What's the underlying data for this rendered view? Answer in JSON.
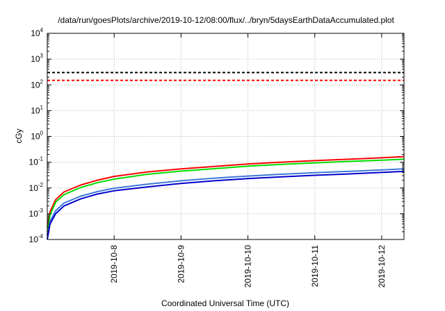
{
  "chart_data": {
    "type": "line",
    "title": "/data/run/goesPlots/archive/2019-10-12/08:00/flux/../bryn/5daysEarthDataAccumulated.plot",
    "xlabel": "Coordinated Universal Time (UTC)",
    "ylabel": "cGy",
    "y_scale": "log",
    "ylim": [
      0.0001,
      10000
    ],
    "y_ticks": [
      {
        "base": "10",
        "exp": "-4",
        "value": 0.0001
      },
      {
        "base": "10",
        "exp": "-3",
        "value": 0.001
      },
      {
        "base": "10",
        "exp": "-2",
        "value": 0.01
      },
      {
        "base": "10",
        "exp": "-1",
        "value": 0.1
      },
      {
        "base": "10",
        "exp": "0",
        "value": 1
      },
      {
        "base": "10",
        "exp": "1",
        "value": 10
      },
      {
        "base": "10",
        "exp": "2",
        "value": 100
      },
      {
        "base": "10",
        "exp": "3",
        "value": 1000
      },
      {
        "base": "10",
        "exp": "4",
        "value": 10000
      }
    ],
    "xlim": [
      "2019-10-07 00:00",
      "2019-10-12 08:00"
    ],
    "x_ticks": [
      "2019-10-8",
      "2019-10-9",
      "2019-10-10",
      "2019-10-11",
      "2019-10-12"
    ],
    "x_tick_dates": [
      "2019-10-08 00:00",
      "2019-10-09 00:00",
      "2019-10-10 00:00",
      "2019-10-11 00:00",
      "2019-10-12 00:00"
    ],
    "grid": true,
    "legend": "none",
    "series": [
      {
        "color": "#ff0000",
        "dashed": false,
        "x": [
          "2019-10-07 00:00",
          "2019-10-07 01:00",
          "2019-10-07 03:00",
          "2019-10-07 06:00",
          "2019-10-07 12:00",
          "2019-10-07 18:00",
          "2019-10-08 00:00",
          "2019-10-08 12:00",
          "2019-10-09 00:00",
          "2019-10-09 12:00",
          "2019-10-10 00:00",
          "2019-10-10 12:00",
          "2019-10-11 00:00",
          "2019-10-11 12:00",
          "2019-10-12 00:00",
          "2019-10-12 08:00"
        ],
        "y": [
          0.0003,
          0.0012,
          0.0035,
          0.007,
          0.013,
          0.02,
          0.028,
          0.042,
          0.055,
          0.068,
          0.085,
          0.1,
          0.115,
          0.13,
          0.148,
          0.165
        ]
      },
      {
        "color": "#00dd00",
        "dashed": false,
        "x": [
          "2019-10-07 00:00",
          "2019-10-07 01:00",
          "2019-10-07 03:00",
          "2019-10-07 06:00",
          "2019-10-07 12:00",
          "2019-10-07 18:00",
          "2019-10-08 00:00",
          "2019-10-08 12:00",
          "2019-10-09 00:00",
          "2019-10-09 12:00",
          "2019-10-10 00:00",
          "2019-10-10 12:00",
          "2019-10-11 00:00",
          "2019-10-11 12:00",
          "2019-10-12 00:00",
          "2019-10-12 08:00"
        ],
        "y": [
          0.0002,
          0.0009,
          0.0028,
          0.0055,
          0.0105,
          0.016,
          0.022,
          0.034,
          0.045,
          0.056,
          0.07,
          0.082,
          0.094,
          0.107,
          0.12,
          0.13
        ]
      },
      {
        "color": "#3a78d8",
        "dashed": false,
        "x": [
          "2019-10-07 00:00",
          "2019-10-07 01:00",
          "2019-10-07 03:00",
          "2019-10-07 06:00",
          "2019-10-07 12:00",
          "2019-10-07 18:00",
          "2019-10-08 00:00",
          "2019-10-08 12:00",
          "2019-10-09 00:00",
          "2019-10-09 12:00",
          "2019-10-10 00:00",
          "2019-10-10 12:00",
          "2019-10-11 00:00",
          "2019-10-11 12:00",
          "2019-10-12 00:00",
          "2019-10-12 08:00"
        ],
        "y": [
          0.00015,
          0.0005,
          0.0013,
          0.0026,
          0.0048,
          0.0072,
          0.0098,
          0.014,
          0.019,
          0.024,
          0.029,
          0.034,
          0.039,
          0.044,
          0.05,
          0.055
        ]
      },
      {
        "color": "#0000cc",
        "dashed": false,
        "x": [
          "2019-10-07 00:00",
          "2019-10-07 01:00",
          "2019-10-07 03:00",
          "2019-10-07 06:00",
          "2019-10-07 12:00",
          "2019-10-07 18:00",
          "2019-10-08 00:00",
          "2019-10-08 12:00",
          "2019-10-09 00:00",
          "2019-10-09 12:00",
          "2019-10-10 00:00",
          "2019-10-10 12:00",
          "2019-10-11 00:00",
          "2019-10-11 12:00",
          "2019-10-12 00:00",
          "2019-10-12 08:00"
        ],
        "y": [
          0.0001,
          0.0004,
          0.001,
          0.002,
          0.0038,
          0.0058,
          0.0078,
          0.011,
          0.015,
          0.019,
          0.023,
          0.027,
          0.031,
          0.035,
          0.04,
          0.044
        ]
      },
      {
        "color": "#000000",
        "dashed": true,
        "x": [
          "2019-10-07 00:00",
          "2019-10-12 08:00"
        ],
        "y": [
          300,
          300
        ]
      },
      {
        "color": "#ff0000",
        "dashed": true,
        "x": [
          "2019-10-07 00:00",
          "2019-10-12 08:00"
        ],
        "y": [
          150,
          150
        ]
      }
    ]
  }
}
